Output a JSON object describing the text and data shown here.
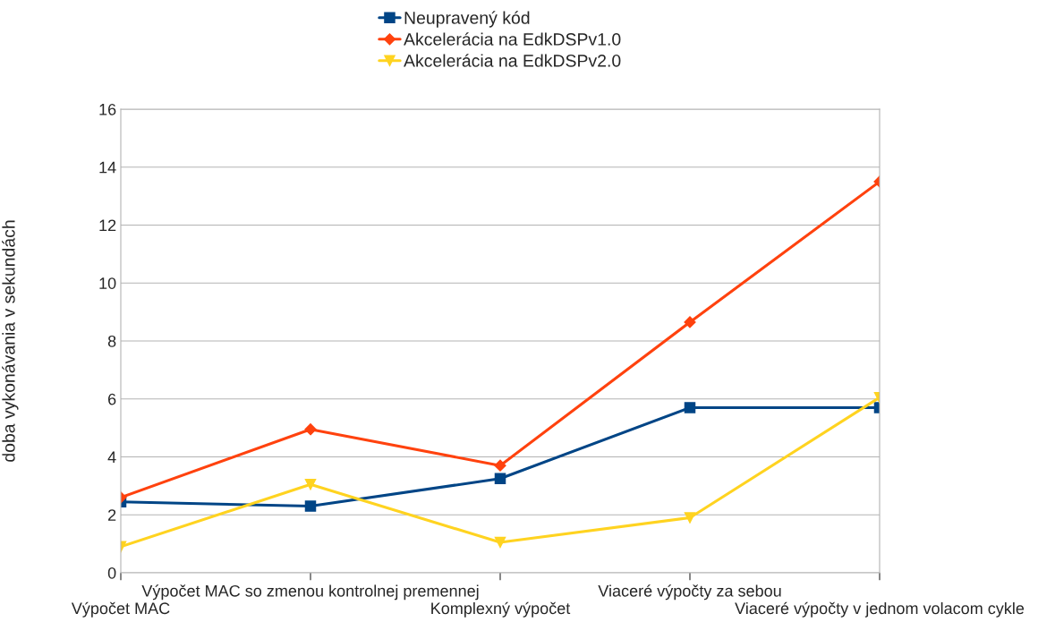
{
  "chart_data": {
    "type": "line",
    "ylabel": "doba vykonávania v sekundách",
    "categories": [
      "Výpočet MAC",
      "Výpočet MAC so zmenou kontrolnej premennej",
      "Komplexný výpočet",
      "Viaceré výpočty za sebou",
      "Viaceré výpočty v jednom volacom cykle"
    ],
    "series": [
      {
        "name": "Neupravený kód",
        "color": "#004586",
        "marker": "square",
        "values": [
          2.45,
          2.3,
          3.25,
          5.7,
          5.7
        ]
      },
      {
        "name": "Akcelerácia na EdkDSPv1.0",
        "color": "#ff420e",
        "marker": "diamond",
        "values": [
          2.6,
          4.95,
          3.7,
          8.65,
          13.5
        ]
      },
      {
        "name": "Akcelerácia na EdkDSPv2.0",
        "color": "#ffd320",
        "marker": "triangle_down",
        "values": [
          0.9,
          3.05,
          1.05,
          1.9,
          6.05
        ]
      }
    ],
    "ylim": [
      0,
      16
    ],
    "yticks": [
      0,
      2,
      4,
      6,
      8,
      10,
      12,
      14,
      16
    ],
    "grid": "y",
    "legend": "top",
    "line_style": "solid"
  }
}
